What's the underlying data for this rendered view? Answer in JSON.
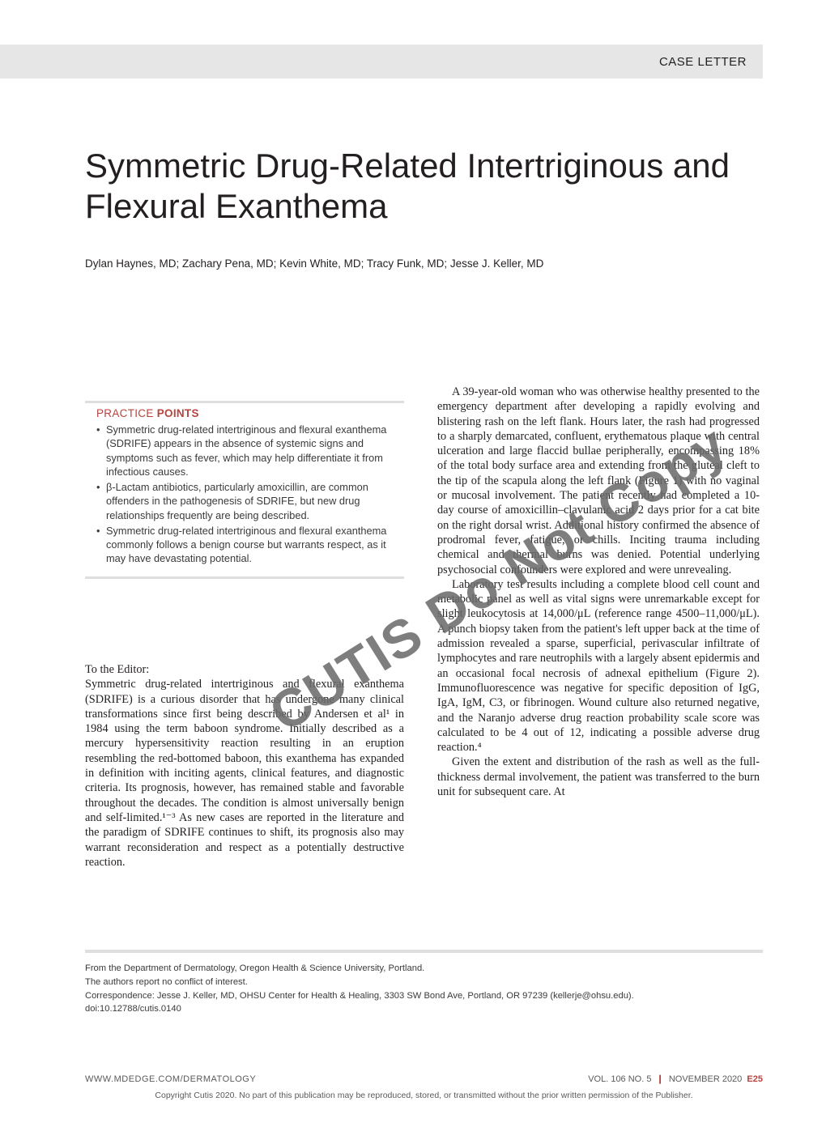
{
  "header": {
    "section_label": "CASE LETTER"
  },
  "article": {
    "title": "Symmetric Drug-Related Intertriginous and Flexural Exanthema",
    "authors": "Dylan Haynes, MD; Zachary Pena, MD; Kevin White, MD; Tracy Funk, MD; Jesse J. Keller, MD"
  },
  "watermark": "CUTIS Do Not Copy",
  "practice": {
    "heading_thin": "PRACTICE ",
    "heading_bold": "POINTS",
    "items": [
      "Symmetric drug-related intertriginous and flexural exanthema (SDRIFE) appears in the absence of systemic signs and symptoms such as fever, which may help differentiate it from infectious causes.",
      "β-Lactam antibiotics, particularly amoxicillin, are common offenders in the pathogenesis of SDRIFE, but new drug relationships frequently are being described.",
      "Symmetric drug-related intertriginous and flexural exanthema commonly follows a benign course but warrants respect, as it may have devastating potential."
    ]
  },
  "editor_line": "To the Editor:",
  "left_paragraph": "Symmetric drug-related intertriginous and flexural exanthema (SDRIFE) is a curious disorder that has undergone many clinical transformations since first being described by Andersen et al¹ in 1984 using the term baboon syndrome. Initially described as a mercury hypersensitivity reaction resulting in an eruption resembling the red-bottomed baboon, this exanthema has expanded in definition with inciting agents, clinical features, and diagnostic criteria. Its prognosis, however, has remained stable and favorable throughout the decades. The condition is almost universally benign and self-limited.¹⁻³ As new cases are reported in the literature and the paradigm of SDRIFE continues to shift, its prognosis also may warrant reconsideration and respect as a potentially destructive reaction.",
  "right_paragraphs": [
    "A 39-year-old woman who was otherwise healthy presented to the emergency department after developing a rapidly evolving and blistering rash on the left flank. Hours later, the rash had progressed to a sharply demarcated, confluent, erythematous plaque with central ulceration and large flaccid bullae peripherally, encompassing 18% of the total body surface area and extending from the gluteal cleft to the tip of the scapula along the left flank (Figure 1) with no vaginal or mucosal involvement. The patient recently had completed a 10-day course of amoxicillin–clavulanic acid 2 days prior for a cat bite on the right dorsal wrist. Additional history confirmed the absence of prodromal fever, fatigue, or chills. Inciting trauma including chemical and thermal burns was denied. Potential underlying psychosocial confounders were explored and were unrevealing.",
    "Laboratory test results including a complete blood cell count and metabolic panel as well as vital signs were unremarkable except for slight leukocytosis at 14,000/μL (reference range 4500–11,000/μL). A punch biopsy taken from the patient's left upper back at the time of admission revealed a sparse, superficial, perivascular infiltrate of lymphocytes and rare neutrophils with a largely absent epidermis and an occasional focal necrosis of adnexal epithelium (Figure 2). Immunofluorescence was negative for specific deposition of IgG, IgA, IgM, C3, or fibrinogen. Wound culture also returned negative, and the Naranjo adverse drug reaction probability scale score was calculated to be 4 out of 12, indicating a possible adverse drug reaction.⁴",
    "Given the extent and distribution of the rash as well as the full-thickness dermal involvement, the patient was transferred to the burn unit for subsequent care. At"
  ],
  "footer": {
    "lines": [
      "From the Department of Dermatology, Oregon Health & Science University, Portland.",
      "The authors report no conflict of interest.",
      "Correspondence: Jesse J. Keller, MD, OHSU Center for Health & Healing, 3303 SW Bond Ave, Portland, OR 97239 (kellerje@ohsu.edu).",
      "doi:10.12788/cutis.0140"
    ]
  },
  "bottom": {
    "left": "WWW.MDEDGE.COM/DERMATOLOGY",
    "vol": "VOL. 106 NO. 5",
    "month": "NOVEMBER 2020",
    "page": "E25"
  },
  "copyright": "Copyright Cutis 2020. No part of this publication may be reproduced, stored, or transmitted without the prior written permission of the Publisher."
}
